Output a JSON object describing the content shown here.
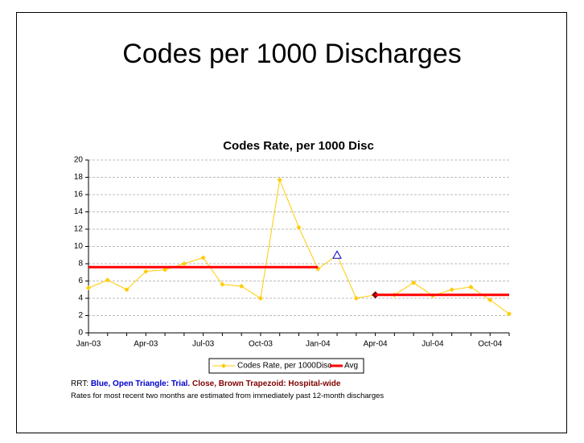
{
  "slide_title": "Codes per 1000 Discharges",
  "notes": [
    "RRT: ",
    "Blue, Open Triangle: Trial",
    ". Close, Brown Trapezoid: Hospital-wide",
    "Rates for most recent two months are estimated from immediately past 12-month discharges"
  ],
  "chart_data": {
    "type": "line",
    "title": "Codes Rate, per 1000 Disc",
    "categories": [
      "Jan-03",
      null,
      null,
      "Apr-03",
      null,
      null,
      "Jul-03",
      null,
      null,
      "Oct-03",
      null,
      null,
      "Jan-04",
      null,
      null,
      "Apr-04",
      null,
      null,
      "Jul-04",
      null,
      null,
      "Oct-04",
      null
    ],
    "series": [
      {
        "name": "Codes Rate, per 1000Disc",
        "color": "#ffcc00",
        "values": [
          5.2,
          6.1,
          5.0,
          7.1,
          7.3,
          8.0,
          8.7,
          5.6,
          5.4,
          4.0,
          17.7,
          12.2,
          7.4,
          9.0,
          4.0,
          4.4,
          4.4,
          5.8,
          4.3,
          5.0,
          5.3,
          3.8,
          2.2
        ],
        "special_points": [
          {
            "index": 13,
            "shape": "triangle",
            "color": "#0000cc"
          },
          {
            "index": 15,
            "shape": "diamond",
            "color": "#800000"
          }
        ]
      },
      {
        "name": "Avg",
        "color": "#ff0000",
        "values": [
          7.6,
          7.6,
          7.6,
          7.6,
          7.6,
          7.6,
          7.6,
          7.6,
          7.6,
          7.6,
          7.6,
          7.6,
          7.6,
          null,
          null,
          4.4,
          4.4,
          4.4,
          4.4,
          4.4,
          4.4,
          4.4,
          4.4
        ]
      }
    ],
    "ylim": [
      0,
      20
    ],
    "yticks": [
      0,
      2,
      4,
      6,
      8,
      10,
      12,
      14,
      16,
      18,
      20
    ],
    "grid": true,
    "legend": "bottom"
  }
}
